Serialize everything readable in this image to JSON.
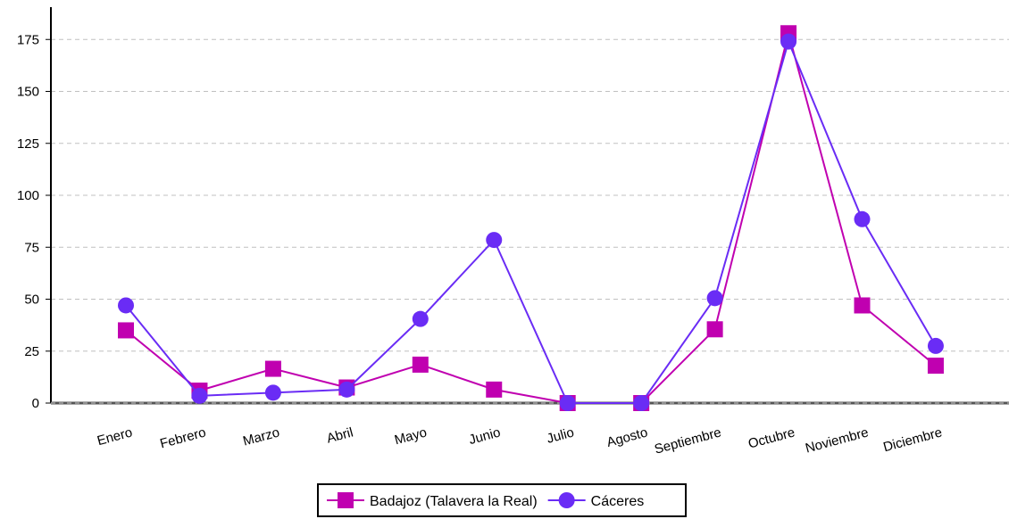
{
  "chart_data": {
    "type": "line",
    "categories": [
      "Enero",
      "Febrero",
      "Marzo",
      "Abril",
      "Mayo",
      "Junio",
      "Julio",
      "Agosto",
      "Septiembre",
      "Octubre",
      "Noviembre",
      "Diciembre"
    ],
    "series": [
      {
        "name": "Badajoz (Talavera la Real)",
        "values": [
          35,
          6,
          16.5,
          7.5,
          18.5,
          6.5,
          0,
          0,
          35.5,
          178,
          47,
          18
        ],
        "color": "#c000b0",
        "marker": "square"
      },
      {
        "name": "Cáceres",
        "values": [
          47,
          3.5,
          5,
          6.5,
          40.5,
          78.5,
          0,
          0,
          50.5,
          174,
          88.5,
          27.5
        ],
        "color": "#6a2cf5",
        "marker": "circle"
      }
    ],
    "yticks": [
      "0",
      "25",
      "50",
      "75",
      "100",
      "125",
      "150",
      "175"
    ],
    "ylim": [
      0,
      187
    ],
    "grid": true,
    "legend_position": "bottom-center"
  }
}
